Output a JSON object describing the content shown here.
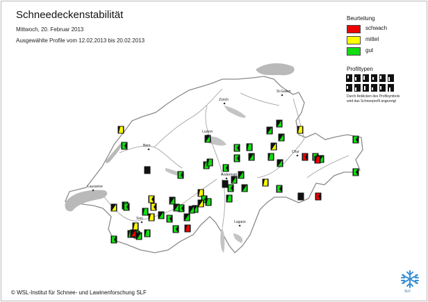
{
  "title": "Schneedeckenstabilität",
  "date": "Mittwoch, 20. Februar 2013",
  "period": "Ausgewählte Profile vom 12.02.2013 bis 20.02.2013",
  "legend": {
    "title": "Beurteilung",
    "items": [
      {
        "label": "schwach",
        "color": "#ee0000"
      },
      {
        "label": "mittel",
        "color": "#ffff00"
      },
      {
        "label": "gut",
        "color": "#11dd11"
      }
    ]
  },
  "profile_types": {
    "title": "Profiltypen",
    "hint_line1": "Durch Anklicken des Profilsymbols",
    "hint_line2": "wird das Schneeprofil angezeigt"
  },
  "cities": [
    "Zürich",
    "St.Gallen",
    "Luzern",
    "Bern",
    "Chur",
    "Lausanne",
    "Andermatt",
    "Sion",
    "Lugano"
  ],
  "copyright": "© WSL-Institut für Schnee- und Lawinenforschung SLF",
  "logo_text": "SLF",
  "profiles": [
    {
      "rating": "gut"
    },
    {
      "rating": "mittel"
    },
    {
      "rating": "gut"
    },
    {
      "rating": "gut"
    },
    {
      "rating": "mittel"
    },
    {
      "rating": "gut"
    },
    {
      "rating": "gut"
    },
    {
      "rating": "gut"
    },
    {
      "rating": "gut"
    },
    {
      "rating": "mittel"
    },
    {
      "rating": "gut"
    },
    {
      "rating": "gut"
    },
    {
      "rating": "gut"
    },
    {
      "rating": "gut"
    },
    {
      "rating": "gut"
    },
    {
      "rating": "gut"
    },
    {
      "rating": "mittel"
    },
    {
      "rating": "gut"
    },
    {
      "rating": "gut"
    },
    {
      "rating": "none"
    },
    {
      "rating": "gut"
    },
    {
      "rating": "gut"
    },
    {
      "rating": "gut"
    },
    {
      "rating": "gut"
    },
    {
      "rating": "mittel"
    },
    {
      "rating": "gut"
    },
    {
      "rating": "mittel"
    },
    {
      "rating": "gut"
    },
    {
      "rating": "mittel"
    },
    {
      "rating": "gut"
    },
    {
      "rating": "mittel"
    },
    {
      "rating": "gut"
    },
    {
      "rating": "gut"
    },
    {
      "rating": "gut"
    },
    {
      "rating": "gut"
    },
    {
      "rating": "mittel"
    },
    {
      "rating": "gut"
    },
    {
      "rating": "mittel"
    },
    {
      "rating": "gut"
    },
    {
      "rating": "gut"
    },
    {
      "rating": "schwach"
    },
    {
      "rating": "gut"
    },
    {
      "rating": "gut"
    },
    {
      "rating": "gut"
    },
    {
      "rating": "gut"
    },
    {
      "rating": "schwach"
    },
    {
      "rating": "gut"
    },
    {
      "rating": "gut"
    },
    {
      "rating": "gut"
    },
    {
      "rating": "gut"
    },
    {
      "rating": "gut"
    },
    {
      "rating": "gut"
    },
    {
      "rating": "schwach"
    },
    {
      "rating": "schwach"
    },
    {
      "rating": "gut"
    },
    {
      "rating": "none"
    },
    {
      "rating": "schwach"
    },
    {
      "rating": "gut"
    },
    {
      "rating": "mittel"
    },
    {
      "rating": "gut"
    },
    {
      "rating": "gut"
    },
    {
      "rating": "none"
    },
    {
      "rating": "gut"
    },
    {
      "rating": "gut"
    }
  ]
}
